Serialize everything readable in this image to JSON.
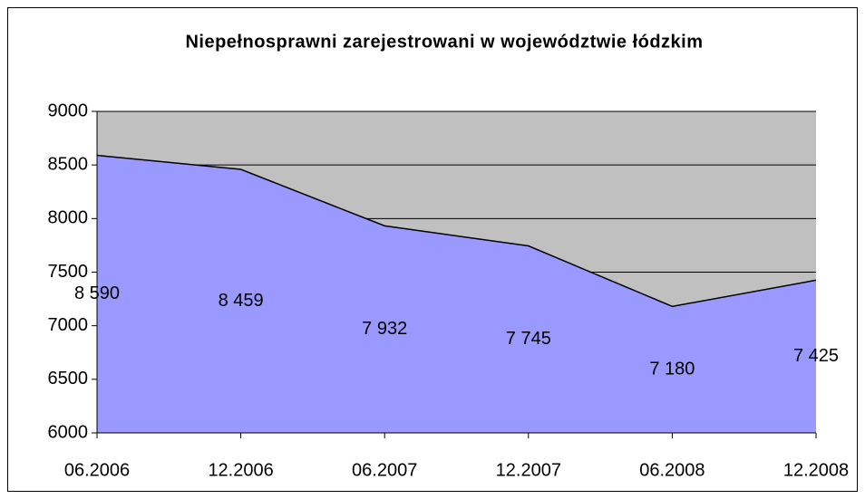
{
  "chart_data": {
    "type": "area",
    "title": "Niepełnosprawni zarejestrowani w województwie łódzkim",
    "categories": [
      "06.2006",
      "12.2006",
      "06.2007",
      "12.2007",
      "06.2008",
      "12.2008"
    ],
    "values": [
      8590,
      8459,
      7932,
      7745,
      7180,
      7425
    ],
    "value_labels": [
      "8 590",
      "8 459",
      "7 932",
      "7 745",
      "7 180",
      "7 425"
    ],
    "color": "#9999ff",
    "line_color": "#000000",
    "plot_color": "#c0c0c0",
    "ylim": [
      6000,
      9000
    ],
    "yticks": [
      6000,
      6500,
      7000,
      7500,
      8000,
      8500,
      9000
    ],
    "grid": true
  }
}
